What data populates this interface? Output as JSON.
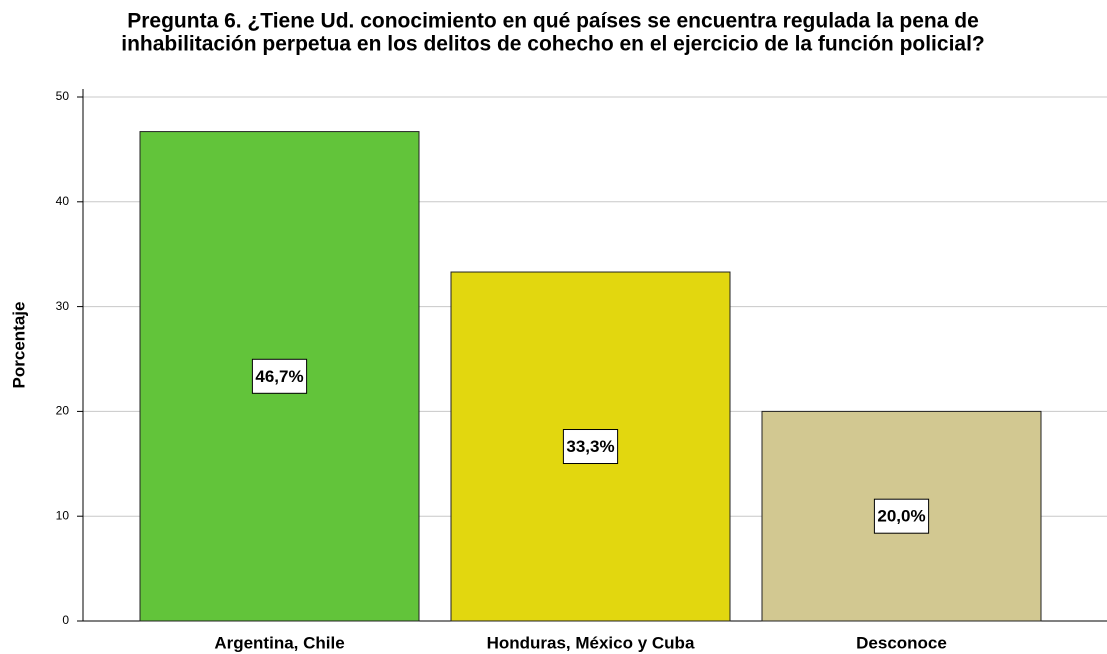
{
  "chart_data": {
    "type": "bar",
    "title": [
      "Pregunta 6. ¿Tiene Ud. conocimiento en qué países se encuentra regulada la pena de",
      "inhabilitación perpetua en los delitos de cohecho en el ejercicio de la función policial?"
    ],
    "y_label": "Porcentaje",
    "categories": [
      "Argentina, Chile",
      "Honduras, México y Cuba",
      "Desconoce"
    ],
    "values": [
      46.7,
      33.3,
      20.0
    ],
    "value_labels": [
      "46,7%",
      "33,3%",
      "20,0%"
    ],
    "colors": [
      "#62c43a",
      "#e2d70f",
      "#d2c891"
    ],
    "ylim": [
      0,
      50
    ],
    "yticks": [
      0,
      10,
      20,
      30,
      40,
      50
    ],
    "grid": true
  }
}
